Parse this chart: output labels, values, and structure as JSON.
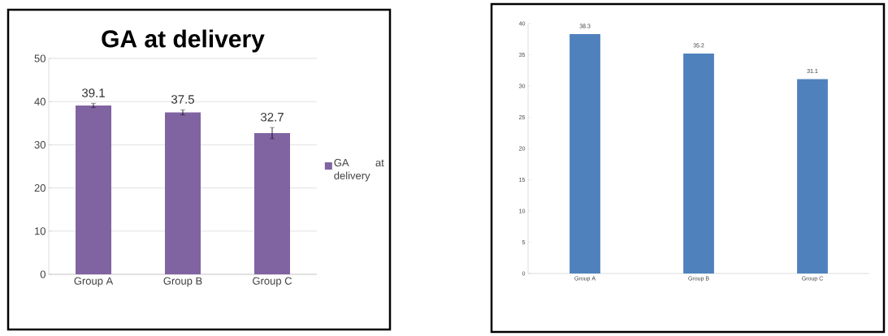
{
  "chart_data": [
    {
      "type": "bar",
      "title": "GA at delivery",
      "categories": [
        "Group A",
        "Group B",
        "Group C"
      ],
      "series": [
        {
          "name": "GA at delivery",
          "color": "#8064a2",
          "values": [
            39.1,
            37.5,
            32.7
          ],
          "errors": [
            0.5,
            0.6,
            1.3
          ]
        }
      ],
      "ylim": [
        0,
        50
      ],
      "yticks": [
        0,
        10,
        20,
        30,
        40,
        50
      ],
      "grid": "y",
      "legend": "right",
      "data_labels": true
    },
    {
      "type": "bar",
      "categories": [
        "Group A",
        "Group B",
        "Group C"
      ],
      "series": [
        {
          "color": "#4f81bd",
          "values": [
            38.3,
            35.2,
            31.1
          ]
        }
      ],
      "ylim": [
        0,
        40
      ],
      "yticks": [
        0,
        5,
        10,
        15,
        20,
        25,
        30,
        35,
        40
      ],
      "grid": false,
      "data_labels": true
    }
  ]
}
